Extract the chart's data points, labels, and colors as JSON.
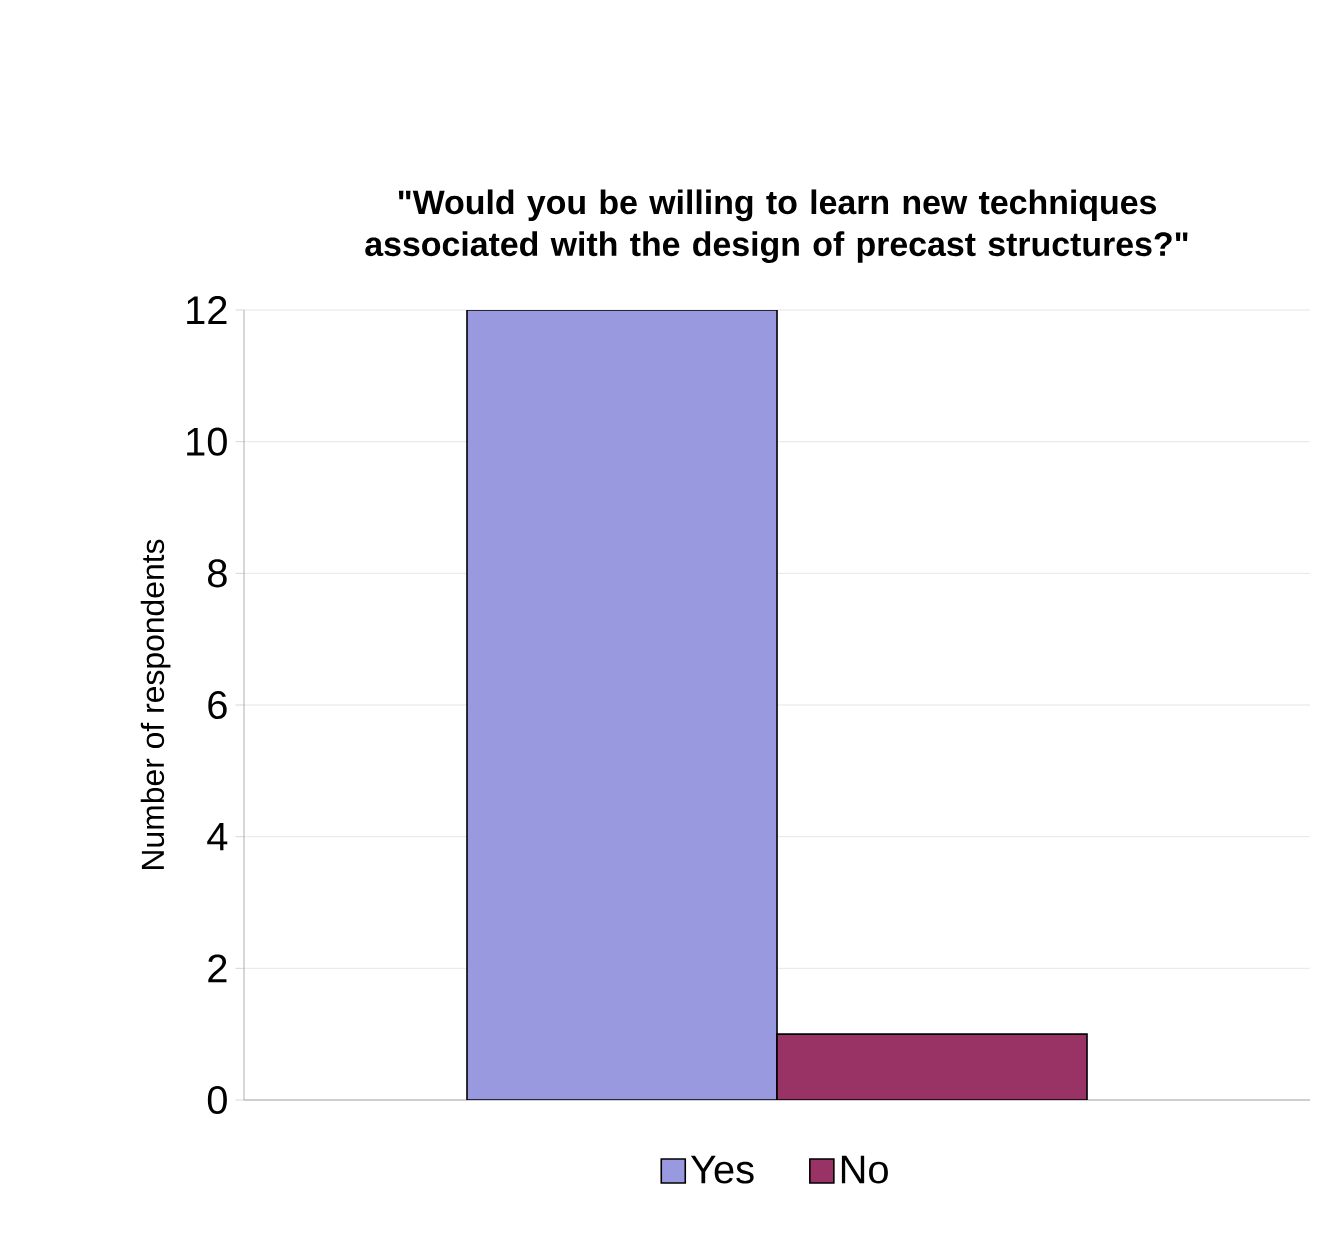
{
  "chart_data": {
    "type": "bar",
    "title": "\"Would you be willing to learn new techniques associated with the design of precast structures?\"",
    "ylabel": "Number of respondents",
    "categories": [
      null
    ],
    "series": [
      {
        "name": "Yes",
        "color": "#9999e0",
        "values": [
          12
        ]
      },
      {
        "name": "No",
        "color": "#993366",
        "values": [
          1
        ]
      }
    ],
    "ylim": [
      0,
      12
    ],
    "yticks": [
      0,
      2,
      4,
      6,
      8,
      10,
      12
    ],
    "grid": "y",
    "legend": "bottom"
  }
}
